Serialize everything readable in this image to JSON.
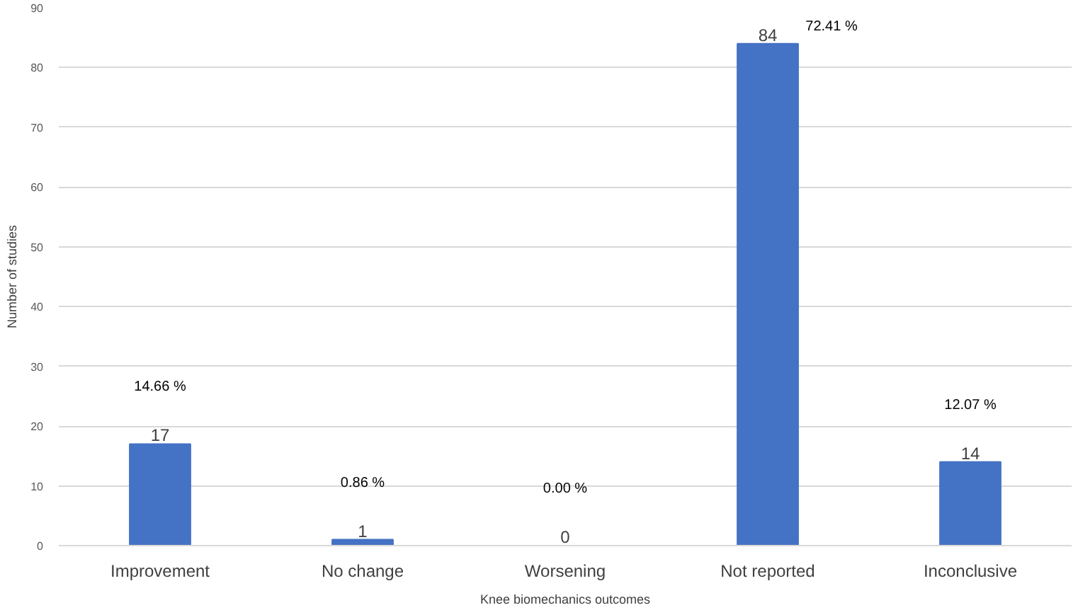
{
  "chart_data": {
    "type": "bar",
    "xlabel": "Knee biomechanics outcomes",
    "ylabel": "Number of studies",
    "categories": [
      "Improvement",
      "No change",
      "Worsening",
      "Not reported",
      "Inconclusive"
    ],
    "values": [
      17,
      1,
      0,
      84,
      14
    ],
    "color": "#4472c4",
    "data_labels": true,
    "ylim": [
      0,
      90
    ],
    "yticks": [
      0,
      10,
      20,
      30,
      40,
      50,
      60,
      70,
      80,
      90
    ],
    "grid": "y",
    "annotations": [
      "14.66 %",
      "0.86 %",
      "0.00 %",
      "72.41 %",
      "12.07 %"
    ]
  }
}
